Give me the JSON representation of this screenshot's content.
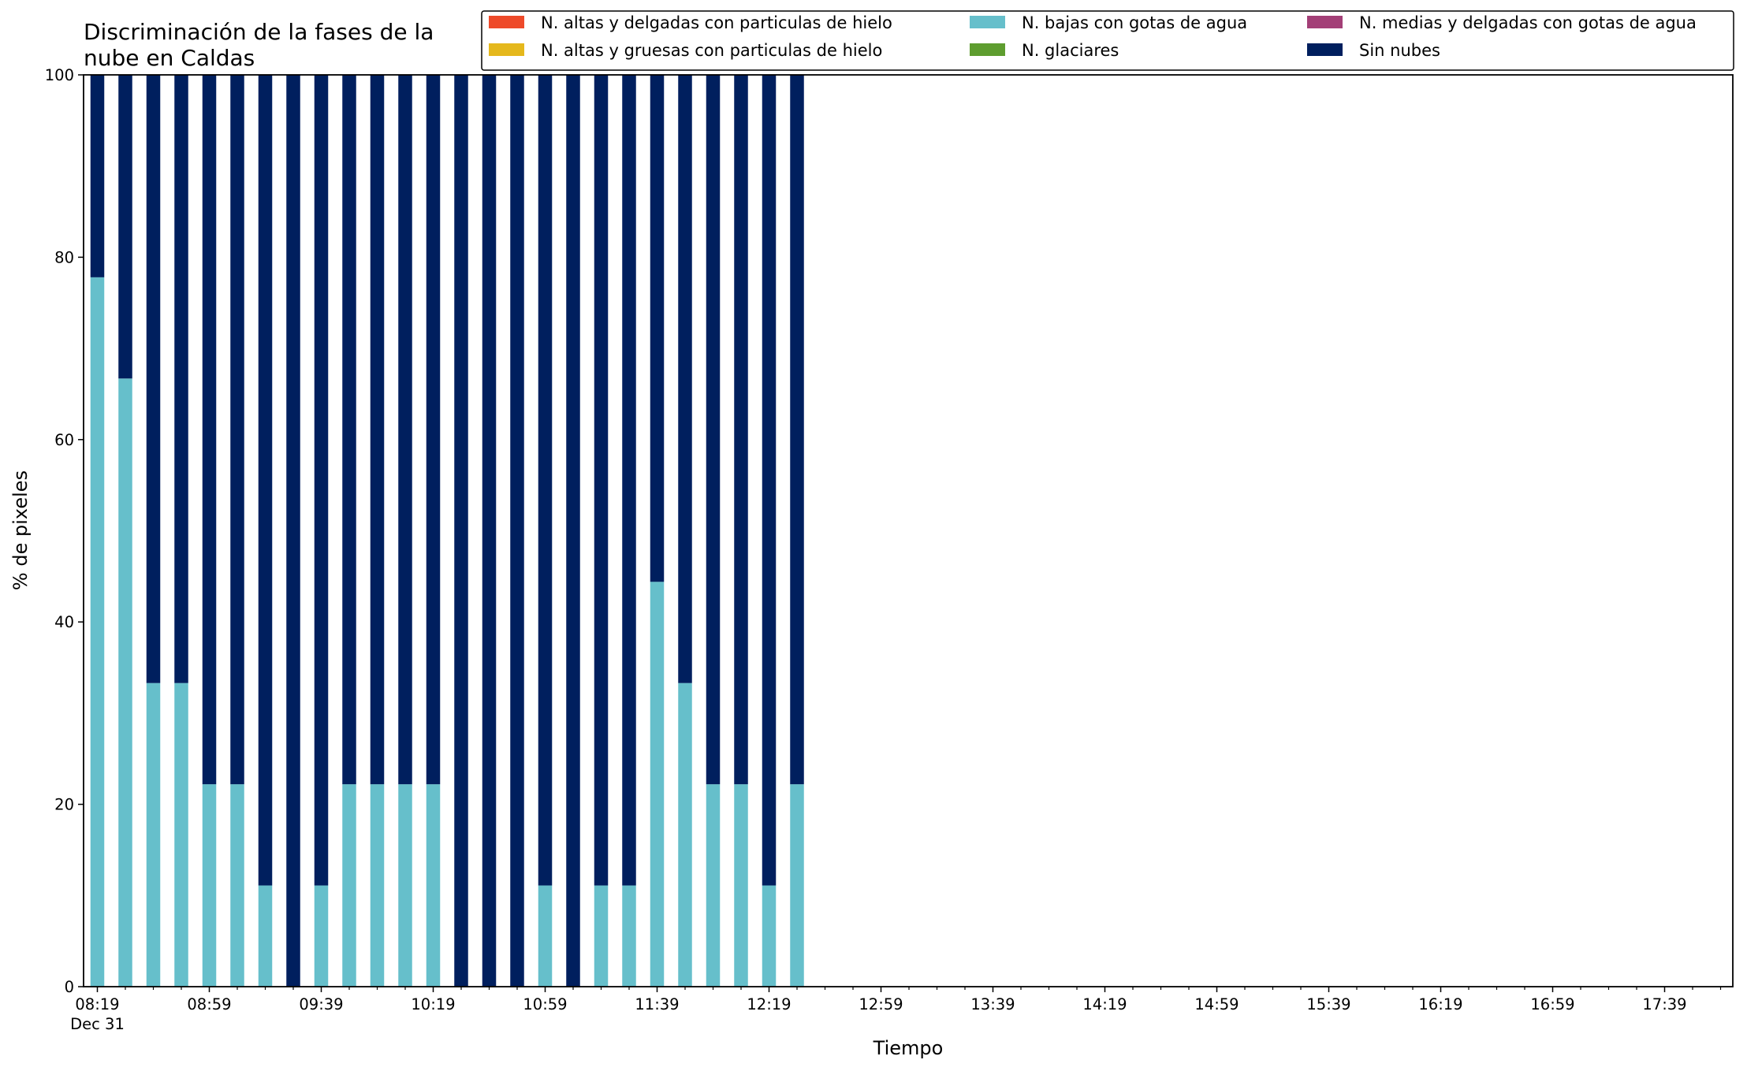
{
  "chart_data": {
    "type": "bar",
    "stacked": true,
    "title_lines": [
      "Discriminación de la fases de la",
      "nube en Caldas"
    ],
    "xlabel": "Tiempo",
    "ylabel": "% de pixeles",
    "ylim": [
      0,
      100
    ],
    "yticks": [
      0,
      20,
      40,
      60,
      80,
      100
    ],
    "x_tick_labels": [
      "08:19",
      "08:59",
      "09:39",
      "10:19",
      "10:59",
      "11:39",
      "12:19",
      "12:59",
      "13:39",
      "14:19",
      "14:59",
      "15:39",
      "16:19",
      "16:59",
      "17:39"
    ],
    "x_tick_sublabel": "Dec 31",
    "categories": [
      "08:19",
      "08:29",
      "08:39",
      "08:49",
      "08:59",
      "09:09",
      "09:19",
      "09:29",
      "09:39",
      "09:49",
      "09:59",
      "10:09",
      "10:19",
      "10:29",
      "10:39",
      "10:49",
      "10:59",
      "11:09",
      "11:19",
      "11:29",
      "11:39",
      "11:49",
      "11:59",
      "12:09",
      "12:19",
      "12:29"
    ],
    "total_slots": 59,
    "legend_position": "top-right",
    "grid": false,
    "series": [
      {
        "name": "N. altas y delgadas con particulas de hielo",
        "color": "#ee4a2a",
        "values": [
          0,
          0,
          0,
          0,
          0,
          0,
          0,
          0,
          0,
          0,
          0,
          0,
          0,
          0,
          0,
          0,
          0,
          0,
          0,
          0,
          0,
          0,
          0,
          0,
          0,
          0
        ]
      },
      {
        "name": "N. altas y gruesas con particulas de hielo",
        "color": "#e5b81c",
        "values": [
          0,
          0,
          0,
          0,
          0,
          0,
          0,
          0,
          0,
          0,
          0,
          0,
          0,
          0,
          0,
          0,
          0,
          0,
          0,
          0,
          0,
          0,
          0,
          0,
          0,
          0
        ]
      },
      {
        "name": "N. bajas con gotas de agua",
        "color": "#66bfcb",
        "values": [
          77.8,
          66.7,
          33.3,
          33.3,
          22.2,
          22.2,
          11.1,
          0,
          11.1,
          22.2,
          22.2,
          22.2,
          22.2,
          0,
          0,
          0,
          11.1,
          0,
          11.1,
          11.1,
          44.4,
          33.3,
          22.2,
          22.2,
          11.1,
          22.2
        ]
      },
      {
        "name": "N. glaciares",
        "color": "#5e9d2f",
        "values": [
          0,
          0,
          0,
          0,
          0,
          0,
          0,
          0,
          0,
          0,
          0,
          0,
          0,
          0,
          0,
          0,
          0,
          0,
          0,
          0,
          0,
          0,
          0,
          0,
          0,
          0
        ]
      },
      {
        "name": "N. medias y delgadas con gotas de agua",
        "color": "#a33f77",
        "values": [
          0,
          0,
          0,
          0,
          0,
          0,
          0,
          0,
          0,
          0,
          0,
          0,
          0,
          0,
          0,
          0,
          0,
          0,
          0,
          0,
          0,
          0,
          0,
          0,
          0,
          0
        ]
      },
      {
        "name": "Sin nubes",
        "color": "#001f5e",
        "values": [
          22.2,
          33.3,
          66.7,
          66.7,
          77.8,
          77.8,
          88.9,
          100,
          88.9,
          77.8,
          77.8,
          77.8,
          77.8,
          100,
          100,
          100,
          88.9,
          100,
          88.9,
          88.9,
          55.6,
          66.7,
          77.8,
          77.8,
          88.9,
          77.8
        ]
      }
    ]
  }
}
